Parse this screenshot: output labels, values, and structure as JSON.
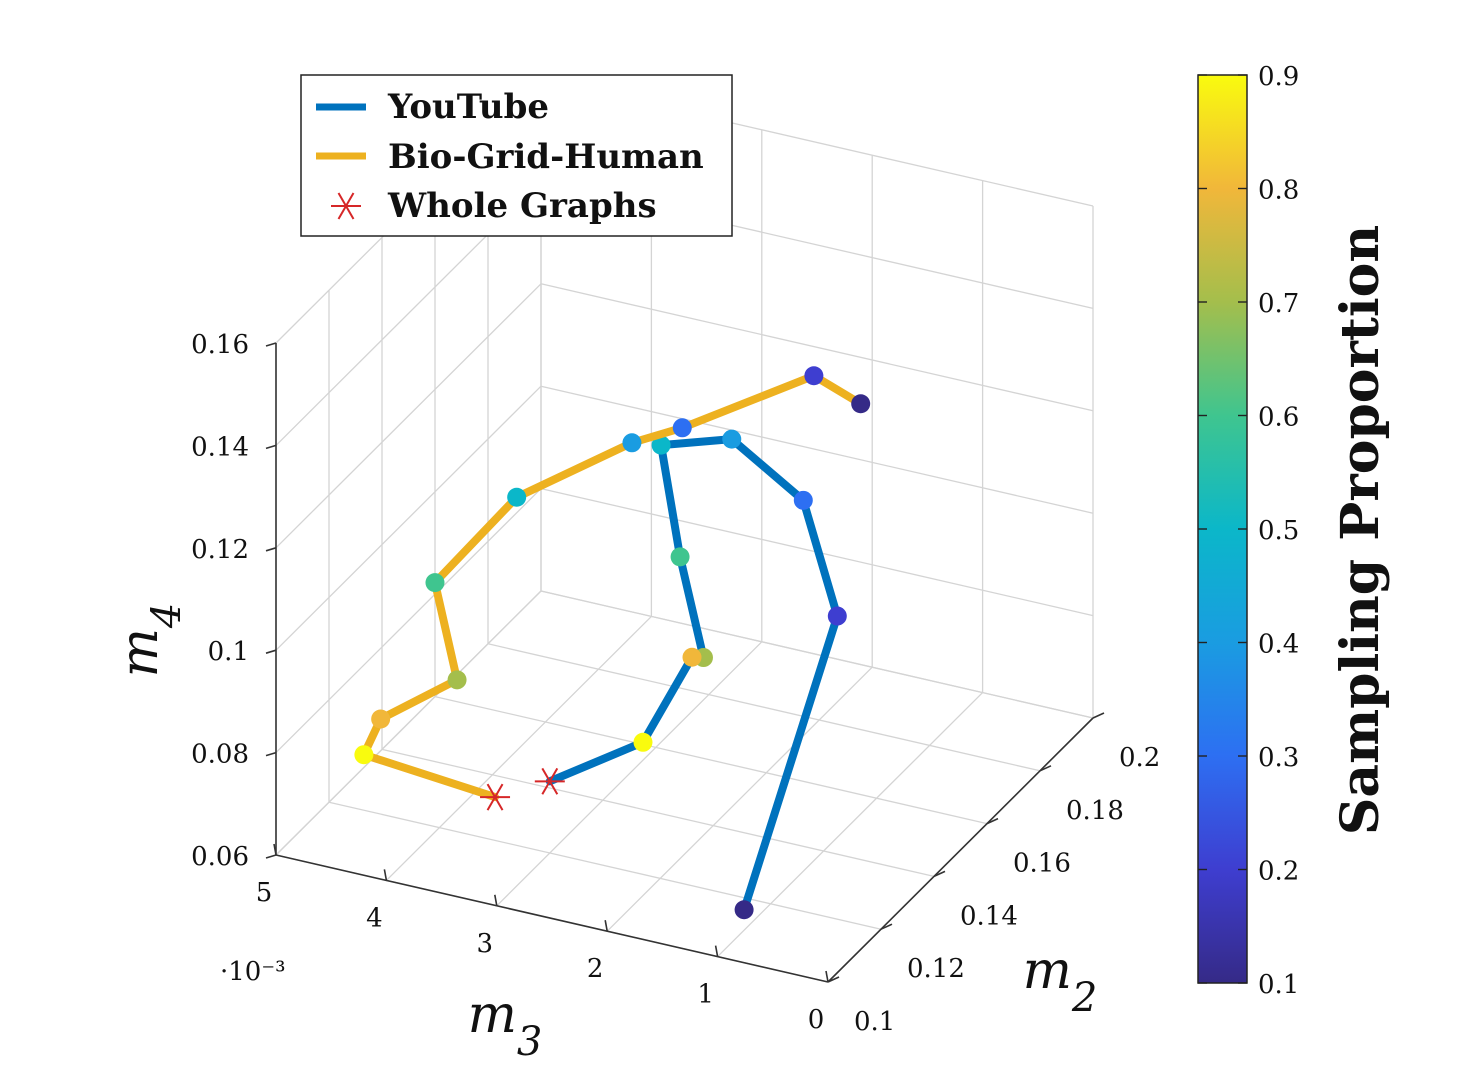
{
  "chart_data": {
    "type": "line3d",
    "xlabel": "m2",
    "ylabel": "m3",
    "zlabel": "m4",
    "xlim": [
      0.1,
      0.2
    ],
    "ylim": [
      0,
      5
    ],
    "zlim": [
      0.06,
      0.16
    ],
    "x_ticks": [
      "0.1",
      "0.12",
      "0.14",
      "0.16",
      "0.18",
      "0.2"
    ],
    "y_ticks": [
      "0",
      "1",
      "2",
      "3",
      "4",
      "5"
    ],
    "z_ticks": [
      "0.06",
      "0.08",
      "0.1",
      "0.12",
      "0.14",
      "0.16"
    ],
    "y_scale_label": "·10⁻³",
    "y_scale_factor": 0.001,
    "colorbar": {
      "label": "Sampling Proportion",
      "ticks": [
        "0.1",
        "0.2",
        "0.3",
        "0.4",
        "0.5",
        "0.6",
        "0.7",
        "0.8",
        "0.9"
      ],
      "range": [
        0.1,
        0.9
      ],
      "colormap": [
        "#352a87",
        "#3e3ed0",
        "#2d6ff2",
        "#1a9ce1",
        "#0bb7c9",
        "#3fc58f",
        "#a4be4c",
        "#f1b73a",
        "#f9fb0e"
      ]
    },
    "legend": {
      "position": "top-left",
      "entries": [
        {
          "name": "YouTube",
          "color": "#0072bd",
          "marker": "line"
        },
        {
          "name": "Bio-Grid-Human",
          "color": "#edb120",
          "marker": "line"
        },
        {
          "name": "Whole Graphs",
          "color": "#d62728",
          "marker": "asterisk"
        }
      ]
    },
    "series": [
      {
        "name": "YouTube",
        "color": "#0072bd",
        "points": [
          {
            "x": 0.11,
            "y": 1.0,
            "z": 0.064,
            "c": 0.1
          },
          {
            "x": 0.166,
            "y": 1.5,
            "z": 0.09,
            "c": 0.2
          },
          {
            "x": 0.174,
            "y": 2.0,
            "z": 0.106,
            "c": 0.3
          },
          {
            "x": 0.172,
            "y": 2.6,
            "z": 0.116,
            "c": 0.4
          },
          {
            "x": 0.162,
            "y": 3.0,
            "z": 0.118,
            "c": 0.5
          },
          {
            "x": 0.14,
            "y": 2.3,
            "z": 0.111,
            "c": 0.6
          },
          {
            "x": 0.128,
            "y": 1.8,
            "z": 0.1,
            "c": 0.7
          },
          {
            "x": 0.132,
            "y": 2.0,
            "z": 0.097,
            "c": 0.8
          },
          {
            "x": 0.126,
            "y": 2.3,
            "z": 0.082,
            "c": 0.9
          },
          {
            "x": 0.12,
            "y": 3.0,
            "z": 0.074,
            "c": 1.0,
            "whole": true
          }
        ]
      },
      {
        "name": "Bio-Grid-Human",
        "color": "#edb120",
        "points": [
          {
            "x": 0.129,
            "y": 0.4,
            "z": 0.156,
            "c": 0.1
          },
          {
            "x": 0.128,
            "y": 0.8,
            "z": 0.16,
            "c": 0.2
          },
          {
            "x": 0.12,
            "y": 1.8,
            "z": 0.149,
            "c": 0.3
          },
          {
            "x": 0.126,
            "y": 2.4,
            "z": 0.14,
            "c": 0.4
          },
          {
            "x": 0.12,
            "y": 3.3,
            "z": 0.128,
            "c": 0.5
          },
          {
            "x": 0.11,
            "y": 3.8,
            "z": 0.114,
            "c": 0.6
          },
          {
            "x": 0.11,
            "y": 3.6,
            "z": 0.096,
            "c": 0.7
          },
          {
            "x": 0.102,
            "y": 4.1,
            "z": 0.09,
            "c": 0.8
          },
          {
            "x": 0.104,
            "y": 4.3,
            "z": 0.081,
            "c": 0.9
          },
          {
            "x": 0.116,
            "y": 3.4,
            "z": 0.071,
            "c": 1.0,
            "whole": true
          }
        ]
      }
    ]
  }
}
